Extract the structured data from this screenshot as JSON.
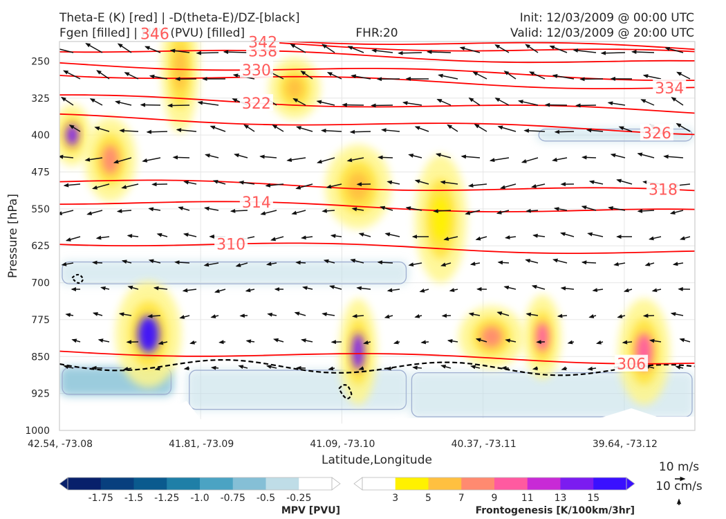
{
  "titles": {
    "left_line1": "Theta-E (K) [red] | -D(theta-E)/DZ-[black]",
    "left_line2": "Fgen [filled] | MPV (PVU) [filled]",
    "center": "FHR:20",
    "right_line1": "Init: 12/03/2009 @ 00:00 UTC",
    "right_line2": "Valid: 12/03/2009 @ 20:00 UTC"
  },
  "chart_data": {
    "type": "cross-section",
    "ylabel": "Pressure [hPa]",
    "xlabel": "Latitude,Longitude",
    "ylim": [
      1000,
      210
    ],
    "y_log": false,
    "yticks": [
      250,
      325,
      400,
      475,
      550,
      625,
      700,
      775,
      850,
      925,
      1000
    ],
    "xticks": [
      {
        "pos": 0.0,
        "label": "42.54, -73.08"
      },
      {
        "pos": 0.2222,
        "label": "41.81, -73.09"
      },
      {
        "pos": 0.4444,
        "label": "41.09, -73.10"
      },
      {
        "pos": 0.6667,
        "label": "40.37, -73.11"
      },
      {
        "pos": 0.8889,
        "label": "39.64, -73.12"
      }
    ],
    "grid": true,
    "theta_e_contours": [
      {
        "level": "306",
        "p": 850,
        "label_x": 0.9
      },
      {
        "level": "310",
        "p": 628,
        "label_x": 0.27
      },
      {
        "level": "314",
        "p": 546,
        "label_x": 0.31
      },
      {
        "level": "318",
        "p": 505,
        "label_x": 0.95
      },
      {
        "level": "322",
        "p": 338,
        "label_x": 0.31
      },
      {
        "level": "326",
        "p": 378,
        "label_x": 0.94
      },
      {
        "level": "330",
        "p": 270,
        "label_x": 0.31
      },
      {
        "level": "334",
        "p": 290,
        "label_x": 0.96
      },
      {
        "level": "338",
        "p": 240,
        "label_x": 0.32
      },
      {
        "level": "342",
        "p": 220,
        "label_x": 0.32
      },
      {
        "level": "346",
        "p": 210,
        "label_x": 0.15
      }
    ],
    "fgen_blobs": [
      {
        "x": 0.02,
        "p": 400,
        "level": 13
      },
      {
        "x": 0.08,
        "p": 450,
        "level": 7
      },
      {
        "x": 0.14,
        "p": 805,
        "level": 15
      },
      {
        "x": 0.19,
        "p": 265,
        "level": 5
      },
      {
        "x": 0.37,
        "p": 305,
        "level": 5
      },
      {
        "x": 0.47,
        "p": 505,
        "level": 5
      },
      {
        "x": 0.47,
        "p": 840,
        "level": 13
      },
      {
        "x": 0.6,
        "p": 570,
        "level": 3
      },
      {
        "x": 0.68,
        "p": 810,
        "level": 7
      },
      {
        "x": 0.76,
        "p": 810,
        "level": 9
      },
      {
        "x": 0.92,
        "p": 840,
        "level": 9
      }
    ],
    "mpv_regions": [
      {
        "x0": 0.0,
        "x1": 0.18,
        "p0": 870,
        "p1": 930,
        "level": -0.75
      },
      {
        "x0": 0.2,
        "x1": 0.55,
        "p0": 875,
        "p1": 960,
        "level": -0.25
      },
      {
        "x0": 0.55,
        "x1": 1.0,
        "p0": 880,
        "p1": 975,
        "level": -0.25
      },
      {
        "x0": 0.75,
        "x1": 1.0,
        "p0": 385,
        "p1": 415,
        "level": -0.25
      },
      {
        "x0": 0.0,
        "x1": 0.55,
        "p0": 655,
        "p1": 705,
        "level": -0.25
      }
    ],
    "stability_contour_p": 865,
    "quiver_key": {
      "u_label": "10 m/s",
      "w_label": "10 cm/s"
    },
    "colorbars": {
      "mpv": {
        "title": "MPV [PVU]",
        "ticks": [
          "-1.75",
          "-1.5",
          "-1.25",
          "-1.0",
          "-0.75",
          "-0.5",
          "-0.25"
        ],
        "colors": [
          "#08206b",
          "#083f7e",
          "#0a5a8e",
          "#1f7fa7",
          "#4ba3c3",
          "#85bfd6",
          "#bfdde7",
          "#ffffff"
        ]
      },
      "fgen": {
        "title": "Frontogenesis [K/100km/3hr]",
        "ticks": [
          "3",
          "5",
          "7",
          "9",
          "11",
          "13",
          "15"
        ],
        "colors": [
          "#ffffff",
          "#fff100",
          "#ffc040",
          "#ff8a70",
          "#ff5aa0",
          "#c82ad6",
          "#7b1cf0",
          "#3a10ff"
        ]
      }
    }
  }
}
